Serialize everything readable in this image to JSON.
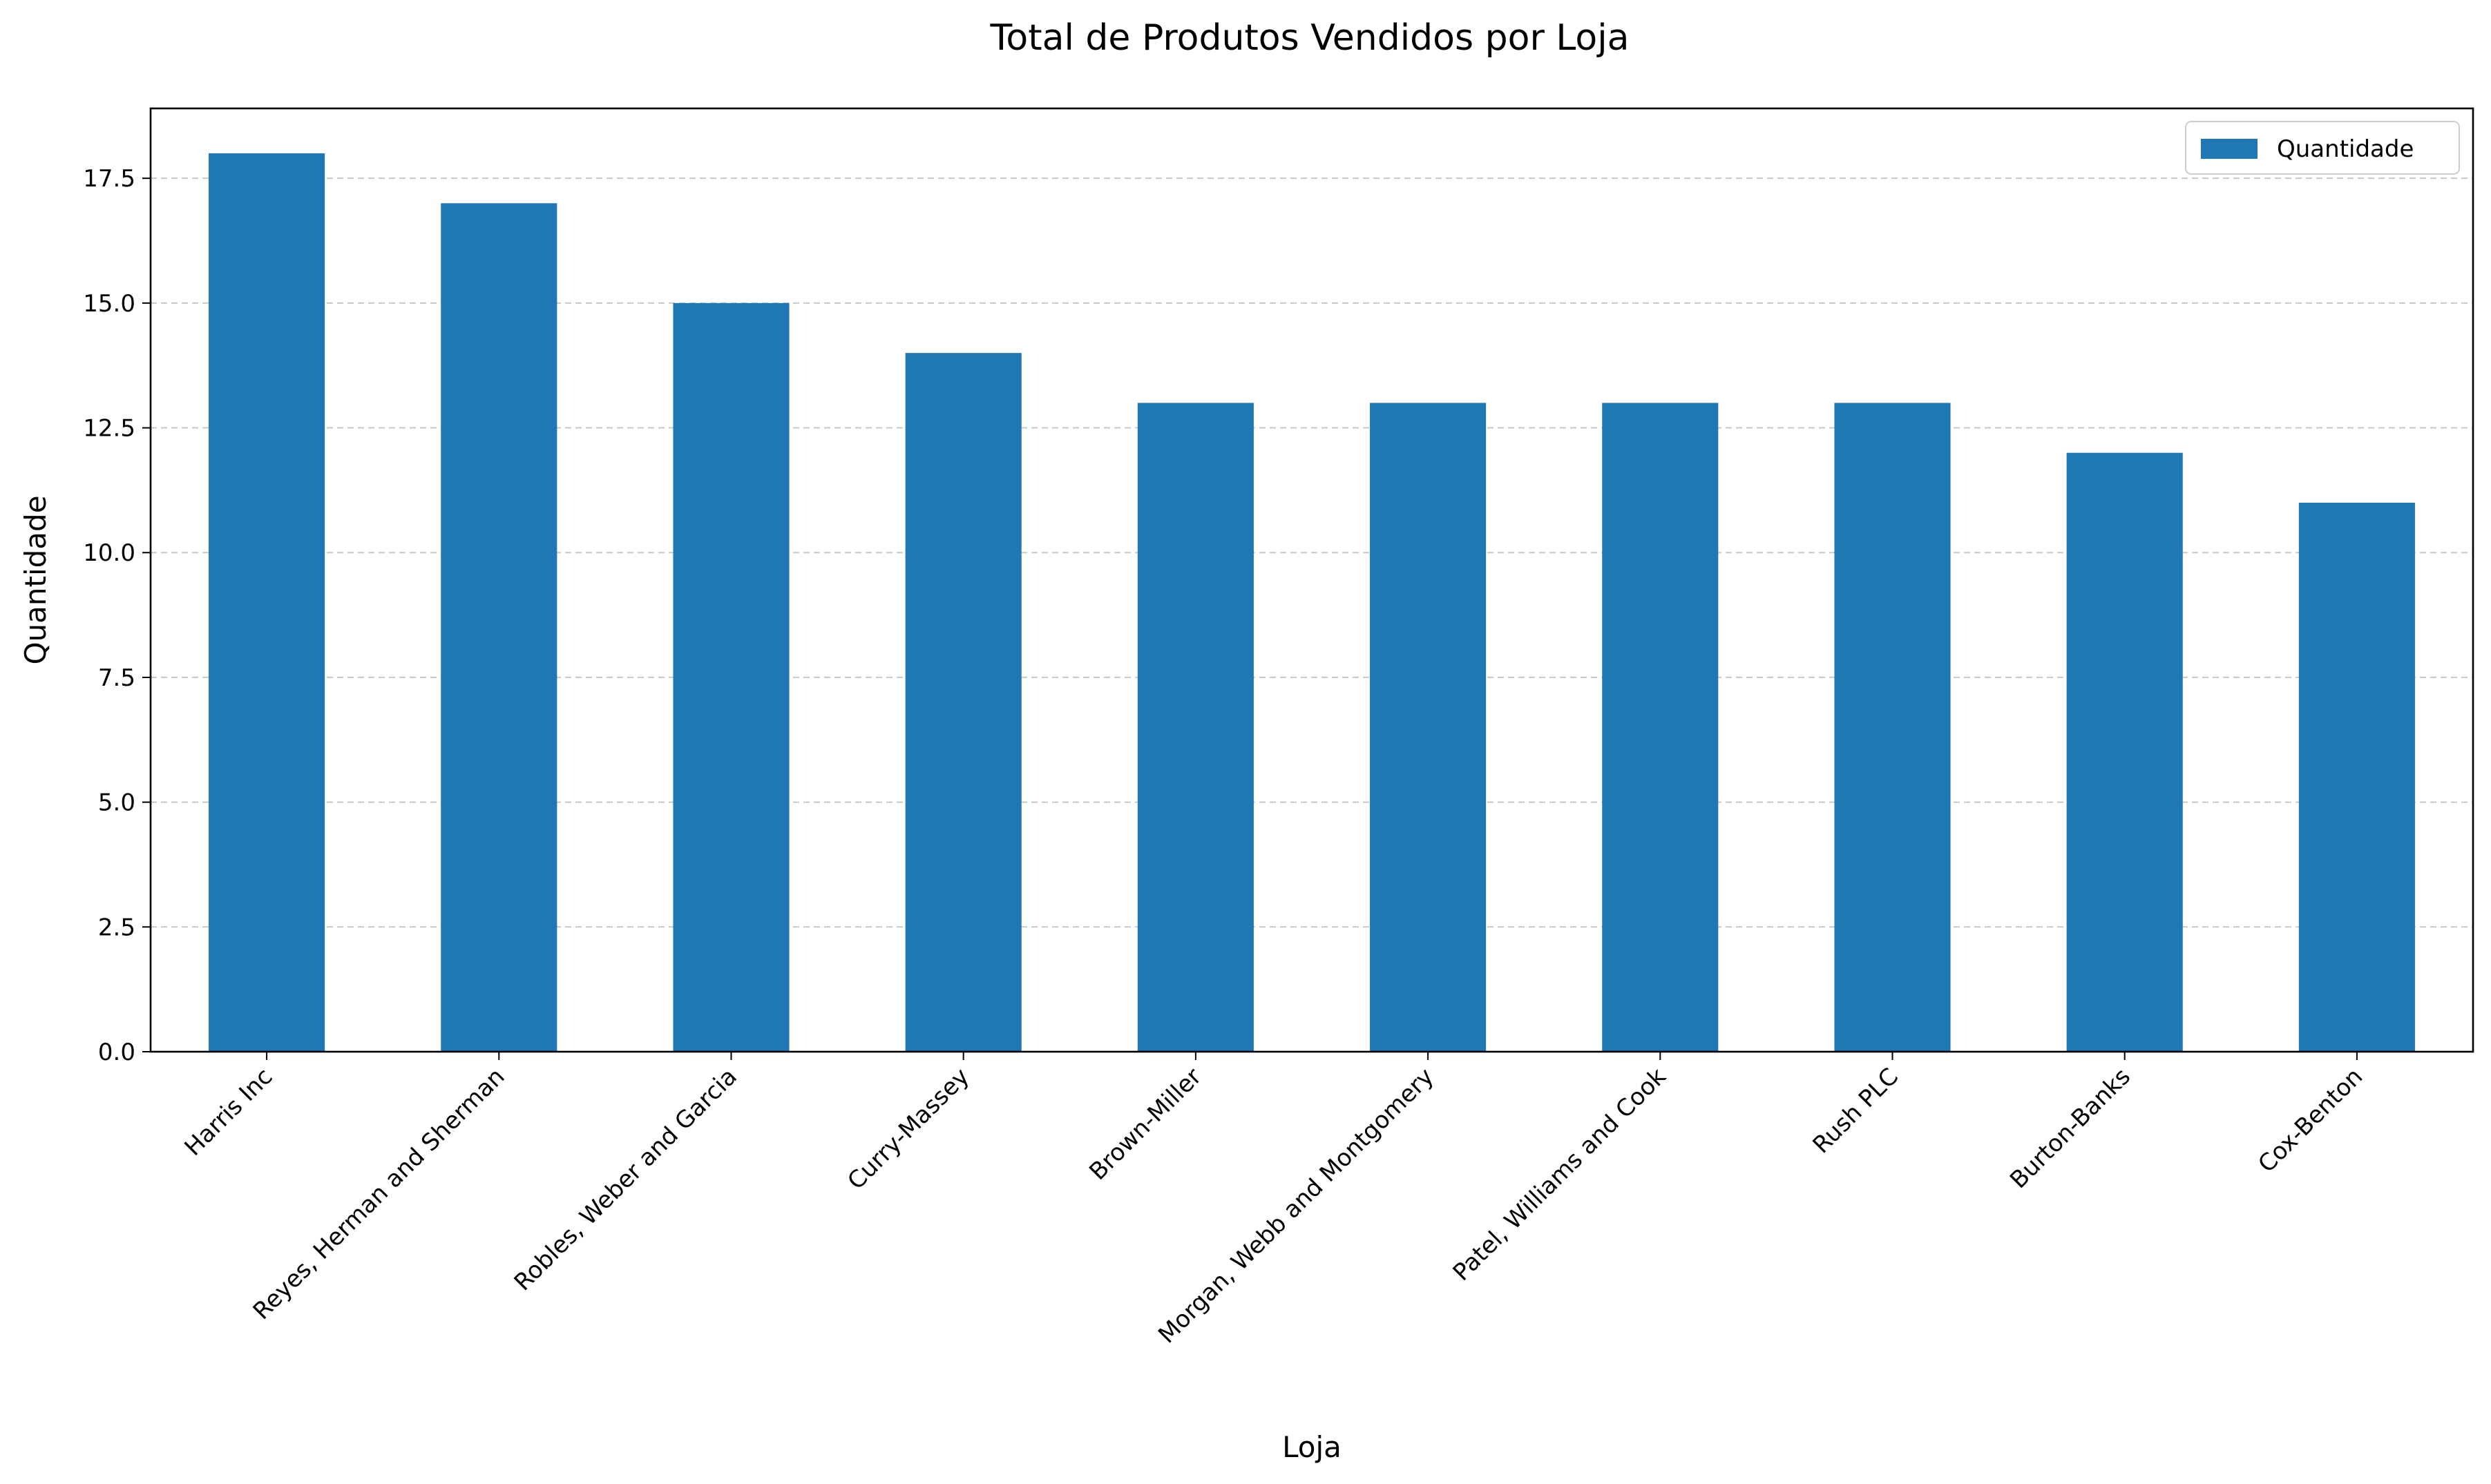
{
  "chart_data": {
    "type": "bar",
    "title": "Total de Produtos Vendidos por Loja",
    "xlabel": "Loja",
    "ylabel": "Quantidade",
    "categories": [
      "Harris Inc",
      "Reyes, Herman and Sherman",
      "Robles, Weber and Garcia",
      "Curry-Massey",
      "Brown-Miller",
      "Morgan, Webb and Montgomery",
      "Patel, Williams and Cook",
      "Rush PLC",
      "Burton-Banks",
      "Cox-Benton"
    ],
    "series": [
      {
        "name": "Quantidade",
        "values": [
          18,
          17,
          15,
          14,
          13,
          13,
          13,
          13,
          12,
          11
        ],
        "color": "#1f77b4"
      }
    ],
    "ylim": [
      0,
      18.9
    ],
    "yticks": [
      0.0,
      2.5,
      5.0,
      7.5,
      10.0,
      12.5,
      15.0,
      17.5
    ],
    "ytick_labels": [
      "0.0",
      "2.5",
      "5.0",
      "7.5",
      "10.0",
      "12.5",
      "15.0",
      "17.5"
    ],
    "grid": "y-dashed",
    "legend_position": "top-right"
  }
}
